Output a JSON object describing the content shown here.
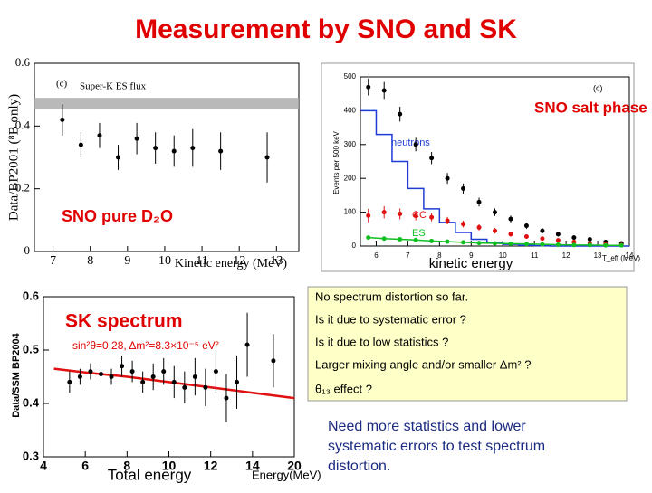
{
  "title": "Measurement by SNO and SK",
  "notes": [
    "No spectrum distortion so far.",
    "Is it due to systematic error ?",
    "Is it due to low statistics ?",
    "Larger mixing angle and/or smaller Δm² ?",
    "θ₁₃ effect ?"
  ],
  "conclusion": [
    "Need more statistics and lower",
    "systematic errors to test spectrum",
    "distortion."
  ],
  "chart_data": [
    {
      "type": "scatter",
      "title": "SNO pure D₂O",
      "xlabel": "Kinetic energy (MeV)",
      "ylabel": "Data/BP2001 (⁸B only)",
      "annotations": [
        "(c)"
      ],
      "xlim": [
        6.5,
        13.6
      ],
      "xticks": [
        7,
        8,
        9,
        10,
        11,
        12,
        13
      ],
      "ylim": [
        0,
        0.6
      ],
      "yticks": [
        0,
        0.2,
        0.4,
        0.6
      ],
      "bands": [
        {
          "name": "Super-K ES flux",
          "range": [
            0.455,
            0.49
          ],
          "color": "#a8a8a8"
        }
      ],
      "series": [
        {
          "style": "points",
          "color": "#000000",
          "x": [
            7.25,
            7.75,
            8.25,
            8.75,
            9.25,
            9.75,
            10.25,
            10.75,
            11.5,
            12.75
          ],
          "values": [
            0.42,
            0.34,
            0.37,
            0.3,
            0.36,
            0.33,
            0.32,
            0.33,
            0.32,
            0.3
          ],
          "errors": [
            0.05,
            0.04,
            0.04,
            0.04,
            0.05,
            0.05,
            0.05,
            0.06,
            0.06,
            0.08
          ]
        }
      ]
    },
    {
      "type": "histogram",
      "title": "SNO salt phase",
      "xlabel": "kinetic energy",
      "ylabel": "Events per 500 keV",
      "annotations": [
        "(c)",
        "T_eff (MeV)"
      ],
      "xlim": [
        5.5,
        14
      ],
      "xticks": [
        6,
        7,
        8,
        9,
        10,
        11,
        12,
        13,
        14
      ],
      "ylim": [
        0,
        500
      ],
      "yticks": [
        0,
        100,
        200,
        300,
        400,
        500
      ],
      "bins": [
        5.5,
        6,
        6.5,
        7,
        7.5,
        8,
        8.5,
        9,
        9.5,
        10,
        10.5,
        11,
        11.5,
        12,
        12.5,
        13,
        13.5,
        14
      ],
      "series": [
        {
          "name": "neutrons",
          "style": "step",
          "color": "#1f3bd6",
          "values": [
            400,
            330,
            250,
            170,
            110,
            70,
            40,
            20,
            10,
            5,
            2,
            1,
            0,
            0,
            0,
            0,
            0
          ]
        },
        {
          "style": "points",
          "color": "#000000",
          "values": [
            470,
            460,
            390,
            300,
            260,
            200,
            170,
            130,
            100,
            80,
            60,
            45,
            35,
            25,
            20,
            12,
            8
          ],
          "errors": [
            25,
            25,
            22,
            20,
            18,
            16,
            15,
            13,
            11,
            10,
            9,
            8,
            7,
            6,
            5,
            4,
            3
          ]
        },
        {
          "name": "CC",
          "style": "points",
          "color": "#e01010",
          "values": [
            90,
            100,
            95,
            90,
            85,
            75,
            65,
            55,
            45,
            35,
            28,
            22,
            17,
            12,
            8,
            5,
            3
          ],
          "errors": [
            20,
            18,
            16,
            14,
            12,
            11,
            10,
            9,
            8,
            7,
            6,
            5,
            4,
            4,
            3,
            3,
            2
          ]
        },
        {
          "name": "ES",
          "style": "points-line",
          "color": "#10c020",
          "values": [
            25,
            22,
            20,
            18,
            15,
            13,
            11,
            9,
            8,
            7,
            6,
            5,
            4,
            3,
            3,
            2,
            2
          ]
        }
      ]
    },
    {
      "type": "scatter",
      "title": "SK spectrum",
      "xlabel": "Total energy",
      "ylabel": "Data/SSM BP2004",
      "annotations": [
        "sin²θ=0.28, Δm²=8.3×10⁻⁵ eV²",
        "Energy(MeV)"
      ],
      "xlim": [
        4,
        20
      ],
      "xticks": [
        4,
        6,
        8,
        10,
        12,
        14,
        20
      ],
      "ylim": [
        0.3,
        0.6
      ],
      "yticks": [
        0.3,
        0.4,
        0.5,
        0.6
      ],
      "series": [
        {
          "style": "line",
          "color": "#e01010",
          "x": [
            4.5,
            6,
            8,
            10,
            12,
            14,
            20
          ],
          "values": [
            0.465,
            0.458,
            0.45,
            0.44,
            0.43,
            0.42,
            0.41
          ]
        },
        {
          "style": "points",
          "color": "#000000",
          "x": [
            5.25,
            5.75,
            6.25,
            6.75,
            7.25,
            7.75,
            8.25,
            8.75,
            9.25,
            9.75,
            10.25,
            10.75,
            11.25,
            11.75,
            12.25,
            12.75,
            13.25,
            13.75,
            17
          ],
          "values": [
            0.44,
            0.45,
            0.46,
            0.455,
            0.45,
            0.47,
            0.46,
            0.44,
            0.45,
            0.46,
            0.44,
            0.43,
            0.45,
            0.43,
            0.46,
            0.41,
            0.44,
            0.51,
            0.48
          ],
          "errors": [
            0.02,
            0.015,
            0.015,
            0.015,
            0.015,
            0.02,
            0.02,
            0.02,
            0.025,
            0.025,
            0.03,
            0.03,
            0.035,
            0.035,
            0.04,
            0.045,
            0.05,
            0.06,
            0.05
          ]
        }
      ]
    }
  ]
}
